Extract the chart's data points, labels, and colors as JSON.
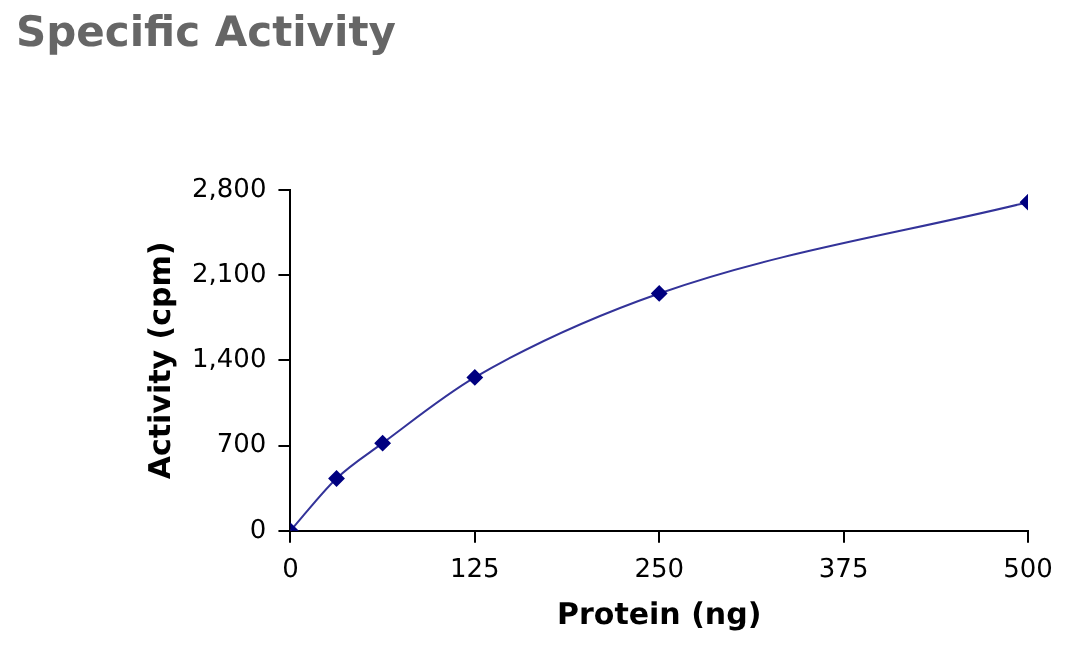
{
  "chart_data": {
    "type": "line",
    "title": "Specific Activity",
    "xlabel": "Protein (ng)",
    "ylabel": "Activity (cpm)",
    "x": [
      0,
      31.25,
      62.5,
      125,
      250,
      500
    ],
    "series": [
      {
        "color": "#000080",
        "values": [
          0,
          430,
          720,
          1260,
          1950,
          2700
        ]
      }
    ],
    "xlim": [
      0,
      500
    ],
    "xticks": [
      0,
      125,
      250,
      375,
      500
    ],
    "ylim": [
      0,
      2800
    ],
    "yticks": [
      0,
      700,
      {
        "value": 1400,
        "label": "1,400"
      },
      {
        "value": 2100,
        "label": "2,100"
      },
      {
        "value": 2800,
        "label": "2,800"
      }
    ],
    "marker": "diamond",
    "line_style": "solid",
    "legend": false
  }
}
